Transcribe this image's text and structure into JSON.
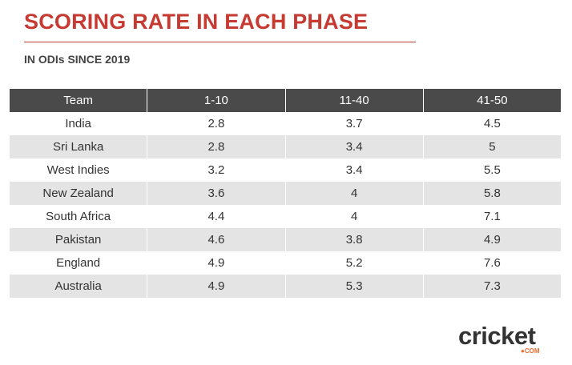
{
  "header": {
    "title": "SCORING RATE IN EACH PHASE",
    "subtitle": "IN ODIs SINCE 2019"
  },
  "brand": {
    "wordmark": "cricket",
    "suffix": "●COM",
    "accent_color": "#ef6b2a",
    "title_color": "#c63a32",
    "header_bg": "#4a4a4a",
    "stripe_bg": "#e4e4e4"
  },
  "chart_data": {
    "type": "table",
    "columns": [
      "Team",
      "1-10",
      "11-40",
      "41-50"
    ],
    "rows": [
      [
        "India",
        "2.8",
        "3.7",
        "4.5"
      ],
      [
        "Sri Lanka",
        "2.8",
        "3.4",
        "5"
      ],
      [
        "West Indies",
        "3.2",
        "3.4",
        "5.5"
      ],
      [
        "New Zealand",
        "3.6",
        "4",
        "5.8"
      ],
      [
        "South Africa",
        "4.4",
        "4",
        "7.1"
      ],
      [
        "Pakistan",
        "4.6",
        "3.8",
        "4.9"
      ],
      [
        "England",
        "4.9",
        "5.2",
        "7.6"
      ],
      [
        "Australia",
        "4.9",
        "5.3",
        "7.3"
      ]
    ]
  }
}
